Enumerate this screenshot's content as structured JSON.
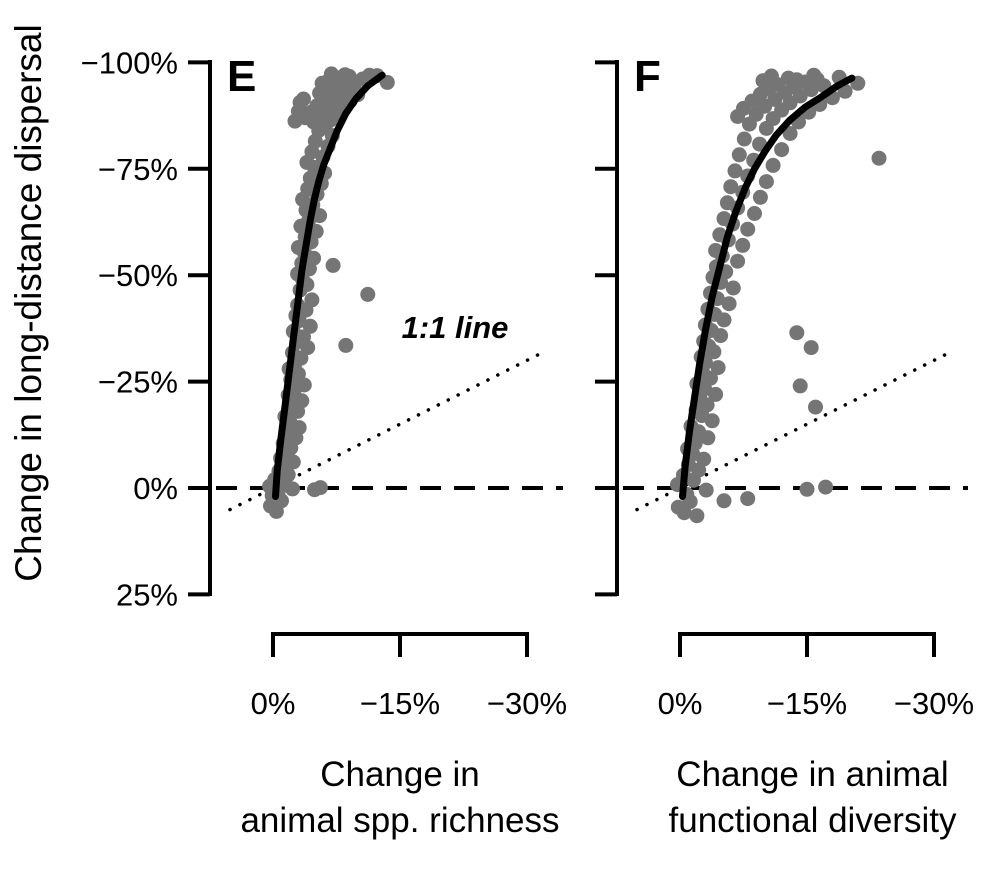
{
  "figure": {
    "y_axis_title": "Change in long-distance dispersal",
    "one_to_one_label": "1:1 line"
  },
  "chart_data": [
    {
      "type": "scatter",
      "panel_label": "E",
      "xlabel": "Change in animal spp. richness",
      "xlabel_lines": [
        "Change in",
        "animal spp. richness"
      ],
      "ylabel": "Change in long-distance dispersal",
      "axes_reversed": true,
      "xlim": [
        5,
        -32
      ],
      "ylim": [
        28,
        -103
      ],
      "x_ticks": {
        "values": [
          0,
          -15,
          -30
        ],
        "labels": [
          "0%",
          "−15%",
          "−30%"
        ]
      },
      "y_ticks": {
        "values": [
          -100,
          -75,
          -50,
          -25,
          0,
          25
        ],
        "labels": [
          "−100%",
          "−75%",
          "−50%",
          "−25%",
          "0%",
          "25%"
        ]
      },
      "reference_lines": {
        "dashed_horizontal_at": 0,
        "dotted_one_to_one": true
      },
      "point_color": "#757575",
      "curve_color": "#000000",
      "points": [
        [
          -0.4,
          5.5
        ],
        [
          0.3,
          4.2
        ],
        [
          -1.0,
          3.0
        ],
        [
          0.1,
          1.8
        ],
        [
          -0.6,
          0.9
        ],
        [
          -2.3,
          0.2
        ],
        [
          -4.9,
          0.4
        ],
        [
          -5.6,
          -0.1
        ],
        [
          0.4,
          -0.4
        ],
        [
          -1.3,
          -1.2
        ],
        [
          -0.2,
          -2.0
        ],
        [
          -1.8,
          -3.1
        ],
        [
          -0.7,
          -4.0
        ],
        [
          -1.1,
          -5.2
        ],
        [
          -2.4,
          -6.1
        ],
        [
          -0.9,
          -7.0
        ],
        [
          -1.6,
          -8.2
        ],
        [
          -2.1,
          -9.4
        ],
        [
          -1.2,
          -10.5
        ],
        [
          -2.7,
          -11.8
        ],
        [
          -1.7,
          -13.0
        ],
        [
          -3.1,
          -14.2
        ],
        [
          -2.0,
          -15.5
        ],
        [
          -1.4,
          -16.8
        ],
        [
          -2.9,
          -18.0
        ],
        [
          -2.2,
          -19.3
        ],
        [
          -3.4,
          -20.5
        ],
        [
          -1.8,
          -21.8
        ],
        [
          -2.5,
          -23.0
        ],
        [
          -3.7,
          -24.2
        ],
        [
          -2.1,
          -25.5
        ],
        [
          -3.0,
          -26.8
        ],
        [
          -1.9,
          -28.0
        ],
        [
          -2.6,
          -29.3
        ],
        [
          -3.3,
          -30.5
        ],
        [
          -2.3,
          -31.8
        ],
        [
          -4.1,
          -33.0
        ],
        [
          -8.6,
          -33.5
        ],
        [
          -2.8,
          -34.3
        ],
        [
          -3.6,
          -35.5
        ],
        [
          -2.4,
          -36.8
        ],
        [
          -4.4,
          -38.0
        ],
        [
          -3.1,
          -39.3
        ],
        [
          -2.7,
          -40.5
        ],
        [
          -3.9,
          -41.8
        ],
        [
          -2.9,
          -43.0
        ],
        [
          -4.6,
          -44.2
        ],
        [
          -11.2,
          -45.5
        ],
        [
          -3.2,
          -46.5
        ],
        [
          -4.0,
          -47.8
        ],
        [
          -3.5,
          -49.0
        ],
        [
          -2.9,
          -50.3
        ],
        [
          -4.3,
          -51.5
        ],
        [
          -7.1,
          -52.3
        ],
        [
          -3.4,
          -52.8
        ],
        [
          -4.8,
          -54.0
        ],
        [
          -3.7,
          -55.3
        ],
        [
          -3.0,
          -56.5
        ],
        [
          -4.5,
          -57.8
        ],
        [
          -3.8,
          -59.0
        ],
        [
          -5.1,
          -60.3
        ],
        [
          -3.3,
          -61.5
        ],
        [
          -4.2,
          -62.8
        ],
        [
          -5.5,
          -64.0
        ],
        [
          -3.9,
          -65.3
        ],
        [
          -4.7,
          -66.5
        ],
        [
          -3.5,
          -67.8
        ],
        [
          -5.2,
          -69.0
        ],
        [
          -4.1,
          -70.3
        ],
        [
          -5.7,
          -71.5
        ],
        [
          -4.4,
          -72.8
        ],
        [
          -6.1,
          -74.0
        ],
        [
          -4.9,
          -75.3
        ],
        [
          -4.0,
          -76.5
        ],
        [
          -5.9,
          -77.8
        ],
        [
          -4.6,
          -79.0
        ],
        [
          -6.5,
          -80.3
        ],
        [
          -5.0,
          -81.5
        ],
        [
          -7.0,
          -82.8
        ],
        [
          -5.4,
          -84.0
        ],
        [
          -6.2,
          -85.2
        ],
        [
          -4.8,
          -86.0
        ],
        [
          -2.6,
          -86.2
        ],
        [
          -6.8,
          -86.5
        ],
        [
          -3.8,
          -87.0
        ],
        [
          -5.6,
          -87.2
        ],
        [
          -7.6,
          -87.8
        ],
        [
          -4.5,
          -88.3
        ],
        [
          -3.0,
          -88.5
        ],
        [
          -6.3,
          -88.8
        ],
        [
          -8.3,
          -89.3
        ],
        [
          -5.2,
          -89.8
        ],
        [
          -7.2,
          -90.2
        ],
        [
          -3.2,
          -90.6
        ],
        [
          -9.1,
          -90.9
        ],
        [
          -5.9,
          -91.1
        ],
        [
          -3.6,
          -91.4
        ],
        [
          -6.7,
          -91.7
        ],
        [
          -8.0,
          -92.0
        ],
        [
          -10.0,
          -92.4
        ],
        [
          -5.5,
          -92.8
        ],
        [
          -7.7,
          -93.2
        ],
        [
          -6.1,
          -93.6
        ],
        [
          -8.8,
          -94.0
        ],
        [
          -7.0,
          -94.4
        ],
        [
          -9.6,
          -94.8
        ],
        [
          -5.8,
          -95.1
        ],
        [
          -13.5,
          -95.3
        ],
        [
          -8.2,
          -95.5
        ],
        [
          -6.6,
          -95.8
        ],
        [
          -10.6,
          -96.1
        ],
        [
          -7.5,
          -96.4
        ],
        [
          -9.0,
          -96.7
        ],
        [
          -12.3,
          -96.9
        ],
        [
          -8.5,
          -97.1
        ],
        [
          -6.9,
          -97.3
        ],
        [
          -11.4,
          -97.0
        ]
      ],
      "trend_curve": [
        [
          -0.3,
          2
        ],
        [
          -0.5,
          -4
        ],
        [
          -0.9,
          -11
        ],
        [
          -1.4,
          -19
        ],
        [
          -1.9,
          -27
        ],
        [
          -2.4,
          -35
        ],
        [
          -2.9,
          -43
        ],
        [
          -3.4,
          -51
        ],
        [
          -3.9,
          -57
        ],
        [
          -4.4,
          -63
        ],
        [
          -4.9,
          -68
        ],
        [
          -5.4,
          -72
        ],
        [
          -6.0,
          -76
        ],
        [
          -6.8,
          -80
        ],
        [
          -7.6,
          -84
        ],
        [
          -8.6,
          -88
        ],
        [
          -9.8,
          -91.5
        ],
        [
          -11.2,
          -94.5
        ],
        [
          -12.9,
          -97
        ]
      ]
    },
    {
      "type": "scatter",
      "panel_label": "F",
      "xlabel": "Change in animal functional diversity",
      "xlabel_lines": [
        "Change in animal",
        "functional diversity"
      ],
      "ylabel": "Change in long-distance dispersal",
      "axes_reversed": true,
      "xlim": [
        5,
        -32
      ],
      "ylim": [
        28,
        -103
      ],
      "x_ticks": {
        "values": [
          0,
          -15,
          -30
        ],
        "labels": [
          "0%",
          "−15%",
          "−30%"
        ]
      },
      "y_ticks": {
        "values": [
          -100,
          -75,
          -50,
          -25,
          0,
          25
        ],
        "labels": [
          "−100%",
          "−75%",
          "−50%",
          "−25%",
          "0%",
          "25%"
        ]
      },
      "reference_lines": {
        "dashed_horizontal_at": 0,
        "dotted_one_to_one": true
      },
      "point_color": "#757575",
      "curve_color": "#000000",
      "points": [
        [
          -0.5,
          5.8
        ],
        [
          -2.0,
          6.5
        ],
        [
          0.2,
          4.5
        ],
        [
          -1.2,
          3.2
        ],
        [
          -5.2,
          3.0
        ],
        [
          -8.0,
          2.5
        ],
        [
          -0.8,
          1.5
        ],
        [
          -3.1,
          0.5
        ],
        [
          -15.0,
          0.3
        ],
        [
          -17.2,
          -0.2
        ],
        [
          0.3,
          -0.8
        ],
        [
          -1.6,
          -1.8
        ],
        [
          -0.4,
          -3.0
        ],
        [
          -2.2,
          -4.2
        ],
        [
          -1.0,
          -5.5
        ],
        [
          -2.8,
          -6.8
        ],
        [
          -1.5,
          -8.0
        ],
        [
          -0.9,
          -9.2
        ],
        [
          -1.8,
          -10.5
        ],
        [
          -3.3,
          -11.8
        ],
        [
          -2.2,
          -13.2
        ],
        [
          -1.3,
          -14.5
        ],
        [
          -3.8,
          -15.8
        ],
        [
          -2.6,
          -17.0
        ],
        [
          -1.9,
          -18.3
        ],
        [
          -16.0,
          -19.0
        ],
        [
          -3.2,
          -19.5
        ],
        [
          -2.4,
          -20.8
        ],
        [
          -4.2,
          -22.0
        ],
        [
          -2.9,
          -23.3
        ],
        [
          -14.2,
          -24.0
        ],
        [
          -2.0,
          -24.5
        ],
        [
          -3.6,
          -25.8
        ],
        [
          -2.7,
          -27.0
        ],
        [
          -4.5,
          -28.3
        ],
        [
          -3.0,
          -29.5
        ],
        [
          -2.5,
          -30.8
        ],
        [
          -4.0,
          -32.0
        ],
        [
          -15.5,
          -33.0
        ],
        [
          -3.4,
          -33.3
        ],
        [
          -2.8,
          -34.5
        ],
        [
          -4.8,
          -35.8
        ],
        [
          -13.8,
          -36.5
        ],
        [
          -3.7,
          -37.0
        ],
        [
          -3.0,
          -38.3
        ],
        [
          -5.2,
          -39.5
        ],
        [
          -4.1,
          -40.8
        ],
        [
          -3.3,
          -42.0
        ],
        [
          -5.8,
          -43.3
        ],
        [
          -4.4,
          -44.5
        ],
        [
          -3.6,
          -45.8
        ],
        [
          -6.3,
          -47.0
        ],
        [
          -4.8,
          -48.3
        ],
        [
          -3.9,
          -49.5
        ],
        [
          -5.4,
          -50.8
        ],
        [
          -4.3,
          -52.0
        ],
        [
          -6.8,
          -53.3
        ],
        [
          -5.0,
          -54.5
        ],
        [
          -4.2,
          -55.8
        ],
        [
          -7.4,
          -57.0
        ],
        [
          -5.7,
          -58.3
        ],
        [
          -4.7,
          -59.5
        ],
        [
          -8.0,
          -60.8
        ],
        [
          -6.2,
          -62.0
        ],
        [
          -5.2,
          -63.3
        ],
        [
          -8.8,
          -64.5
        ],
        [
          -6.8,
          -65.8
        ],
        [
          -5.6,
          -67.0
        ],
        [
          -9.5,
          -68.3
        ],
        [
          -7.4,
          -69.5
        ],
        [
          -6.0,
          -70.8
        ],
        [
          -10.2,
          -72.0
        ],
        [
          -8.0,
          -73.3
        ],
        [
          -6.5,
          -74.5
        ],
        [
          -11.0,
          -75.8
        ],
        [
          -8.7,
          -77.0
        ],
        [
          -23.5,
          -77.5
        ],
        [
          -7.0,
          -78.3
        ],
        [
          -12.0,
          -79.5
        ],
        [
          -9.4,
          -80.8
        ],
        [
          -7.6,
          -82.0
        ],
        [
          -13.0,
          -83.3
        ],
        [
          -10.2,
          -84.5
        ],
        [
          -8.2,
          -85.5
        ],
        [
          -14.0,
          -86.0
        ],
        [
          -11.0,
          -86.8
        ],
        [
          -6.8,
          -87.3
        ],
        [
          -9.0,
          -87.8
        ],
        [
          -15.2,
          -88.3
        ],
        [
          -12.0,
          -88.8
        ],
        [
          -7.5,
          -89.2
        ],
        [
          -10.0,
          -89.7
        ],
        [
          -16.5,
          -90.1
        ],
        [
          -13.0,
          -90.5
        ],
        [
          -8.5,
          -90.9
        ],
        [
          -11.2,
          -91.3
        ],
        [
          -18.0,
          -91.7
        ],
        [
          -14.2,
          -92.1
        ],
        [
          -9.5,
          -92.5
        ],
        [
          -12.4,
          -92.9
        ],
        [
          -19.5,
          -93.2
        ],
        [
          -15.5,
          -93.6
        ],
        [
          -10.5,
          -93.9
        ],
        [
          -13.5,
          -94.2
        ],
        [
          -17.0,
          -94.5
        ],
        [
          -11.5,
          -94.8
        ],
        [
          -21.0,
          -95.1
        ],
        [
          -14.8,
          -95.4
        ],
        [
          -9.8,
          -95.7
        ],
        [
          -16.2,
          -96.0
        ],
        [
          -12.8,
          -96.3
        ],
        [
          -18.8,
          -96.5
        ],
        [
          -10.8,
          -96.8
        ],
        [
          -15.8,
          -97.0
        ],
        [
          -13.8,
          -95.9
        ]
      ],
      "trend_curve": [
        [
          -0.3,
          2
        ],
        [
          -0.6,
          -5
        ],
        [
          -1.1,
          -13
        ],
        [
          -1.7,
          -21
        ],
        [
          -2.3,
          -29
        ],
        [
          -3.0,
          -37
        ],
        [
          -3.8,
          -45
        ],
        [
          -4.7,
          -52
        ],
        [
          -5.6,
          -59
        ],
        [
          -6.6,
          -65
        ],
        [
          -7.7,
          -70.5
        ],
        [
          -8.8,
          -75
        ],
        [
          -10.0,
          -79
        ],
        [
          -11.4,
          -83
        ],
        [
          -13.0,
          -86.5
        ],
        [
          -14.8,
          -89.5
        ],
        [
          -16.8,
          -92
        ],
        [
          -18.6,
          -94.5
        ],
        [
          -20.3,
          -96.3
        ]
      ]
    }
  ]
}
